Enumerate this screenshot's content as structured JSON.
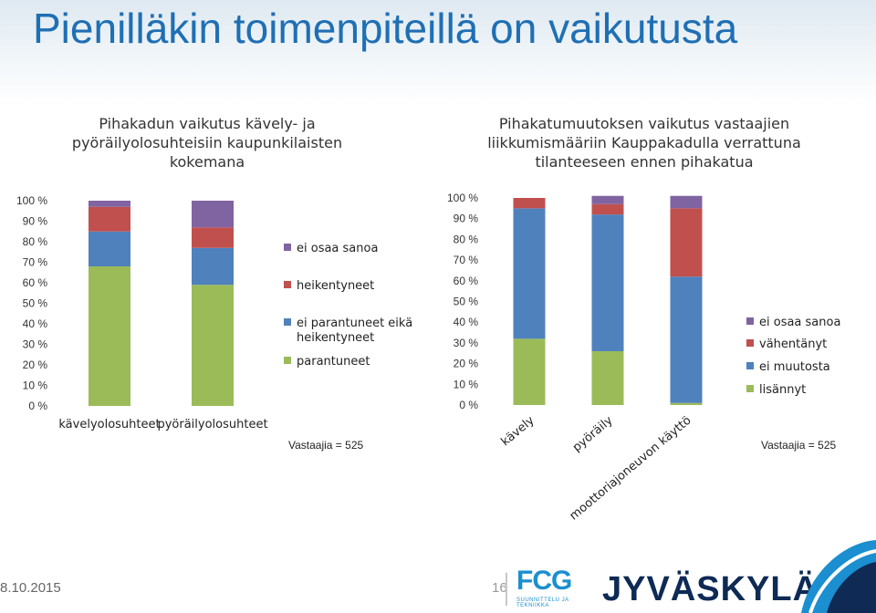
{
  "slide": {
    "title": "Pienilläkin toimenpiteillä on vaikutusta",
    "date": "8.10.2015",
    "page": "16",
    "logo_fcg": "FCG",
    "logo_fcg_sub": "SUUNNITTELU JA TEKNIIKKA",
    "logo_city": "JYVÄSKYLÄ"
  },
  "colors": {
    "green": "#9bbb59",
    "blue": "#4f81bd",
    "red": "#c0504d",
    "purple": "#8064a2",
    "title": "#1f6fb4"
  },
  "chart_data": [
    {
      "type": "bar",
      "stacked": true,
      "title": "Pihakadun vaikutus kävely- ja pyöräilyolosuhteisiin kaupunkilaisten kokemana",
      "title_lines": [
        "Pihakadun vaikutus kävely- ja",
        "pyöräilyolosuhteisiin kaupunkilaisten",
        "kokemana"
      ],
      "categories": [
        "kävelyolosuhteet",
        "pyöräilyolosuhteet"
      ],
      "y_ticks": [
        "0 %",
        "10 %",
        "20 %",
        "30 %",
        "40 %",
        "50 %",
        "60 %",
        "70 %",
        "80 %",
        "90 %",
        "100 %"
      ],
      "ylim": [
        0,
        100
      ],
      "series": [
        {
          "name": "parantuneet",
          "color": "#9bbb59",
          "values": [
            68,
            59
          ]
        },
        {
          "name": "ei parantuneet eikä heikentyneet",
          "color": "#4f81bd",
          "values": [
            17,
            18
          ]
        },
        {
          "name": "heikentyneet",
          "color": "#c0504d",
          "values": [
            12,
            10
          ]
        },
        {
          "name": "ei osaa sanoa",
          "color": "#8064a2",
          "values": [
            3,
            13
          ]
        }
      ],
      "legend": [
        {
          "name": "ei osaa sanoa",
          "color": "#8064a2"
        },
        {
          "name": "heikentyneet",
          "color": "#c0504d"
        },
        {
          "name": "ei parantuneet eikä heikentyneet",
          "color": "#4f81bd",
          "lines": [
            "ei parantuneet eikä",
            "heikentyneet"
          ]
        },
        {
          "name": "parantuneet",
          "color": "#9bbb59"
        }
      ],
      "note": "Vastaajia = 525"
    },
    {
      "type": "bar",
      "stacked": true,
      "title": "Pihakatumuutoksen vaikutus vastaajien liikkumismääriin Kauppakadulla verrattuna tilanteeseen ennen pihakatua",
      "title_lines": [
        "Pihakatumuutoksen vaikutus vastaajien",
        "liikkumismääriin Kauppakadulla verrattuna",
        "tilanteeseen ennen pihakatua"
      ],
      "categories": [
        "kävely",
        "pyöräily",
        "moottoriajoneuvon käyttö"
      ],
      "y_ticks": [
        "0 %",
        "10 %",
        "20 %",
        "30 %",
        "40 %",
        "50 %",
        "60 %",
        "70 %",
        "80 %",
        "90 %",
        "100 %"
      ],
      "ylim": [
        0,
        100
      ],
      "series": [
        {
          "name": "lisännyt",
          "color": "#9bbb59",
          "values": [
            32,
            26,
            1
          ]
        },
        {
          "name": "ei muutosta",
          "color": "#4f81bd",
          "values": [
            63,
            66,
            61
          ]
        },
        {
          "name": "vähentänyt",
          "color": "#c0504d",
          "values": [
            5,
            5,
            33
          ]
        },
        {
          "name": "ei osaa sanoa",
          "color": "#8064a2",
          "values": [
            0,
            4,
            6
          ]
        }
      ],
      "legend": [
        {
          "name": "ei osaa sanoa",
          "color": "#8064a2"
        },
        {
          "name": "vähentänyt",
          "color": "#c0504d"
        },
        {
          "name": "ei muutosta",
          "color": "#4f81bd"
        },
        {
          "name": "lisännyt",
          "color": "#9bbb59"
        }
      ],
      "note": "Vastaajia = 525"
    }
  ]
}
